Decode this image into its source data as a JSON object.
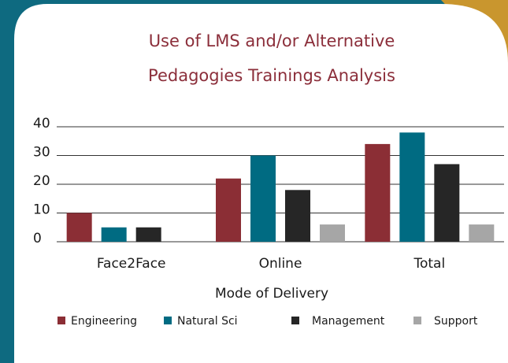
{
  "chart_data": {
    "type": "bar",
    "title": "Use of LMS and/or Alternative Pedagogies Trainings Analysis",
    "xlabel": "Mode of Delivery",
    "categories": [
      "Face2Face",
      "Online",
      "Total"
    ],
    "series": [
      {
        "name": "Engineering",
        "color": "#8b2e35",
        "values": [
          10,
          22,
          34
        ]
      },
      {
        "name": "Natural Sci",
        "color": "#006b82",
        "values": [
          5,
          30,
          38
        ]
      },
      {
        "name": "Management",
        "color": "#262626",
        "values": [
          5,
          18,
          27
        ]
      },
      {
        "name": "Support",
        "color": "#a6a6a6",
        "values": [
          null,
          6,
          6
        ]
      }
    ],
    "ylim": [
      0,
      40
    ],
    "yticks": [
      0,
      10,
      20,
      30,
      40
    ],
    "grid": true,
    "legend": "bottom"
  }
}
